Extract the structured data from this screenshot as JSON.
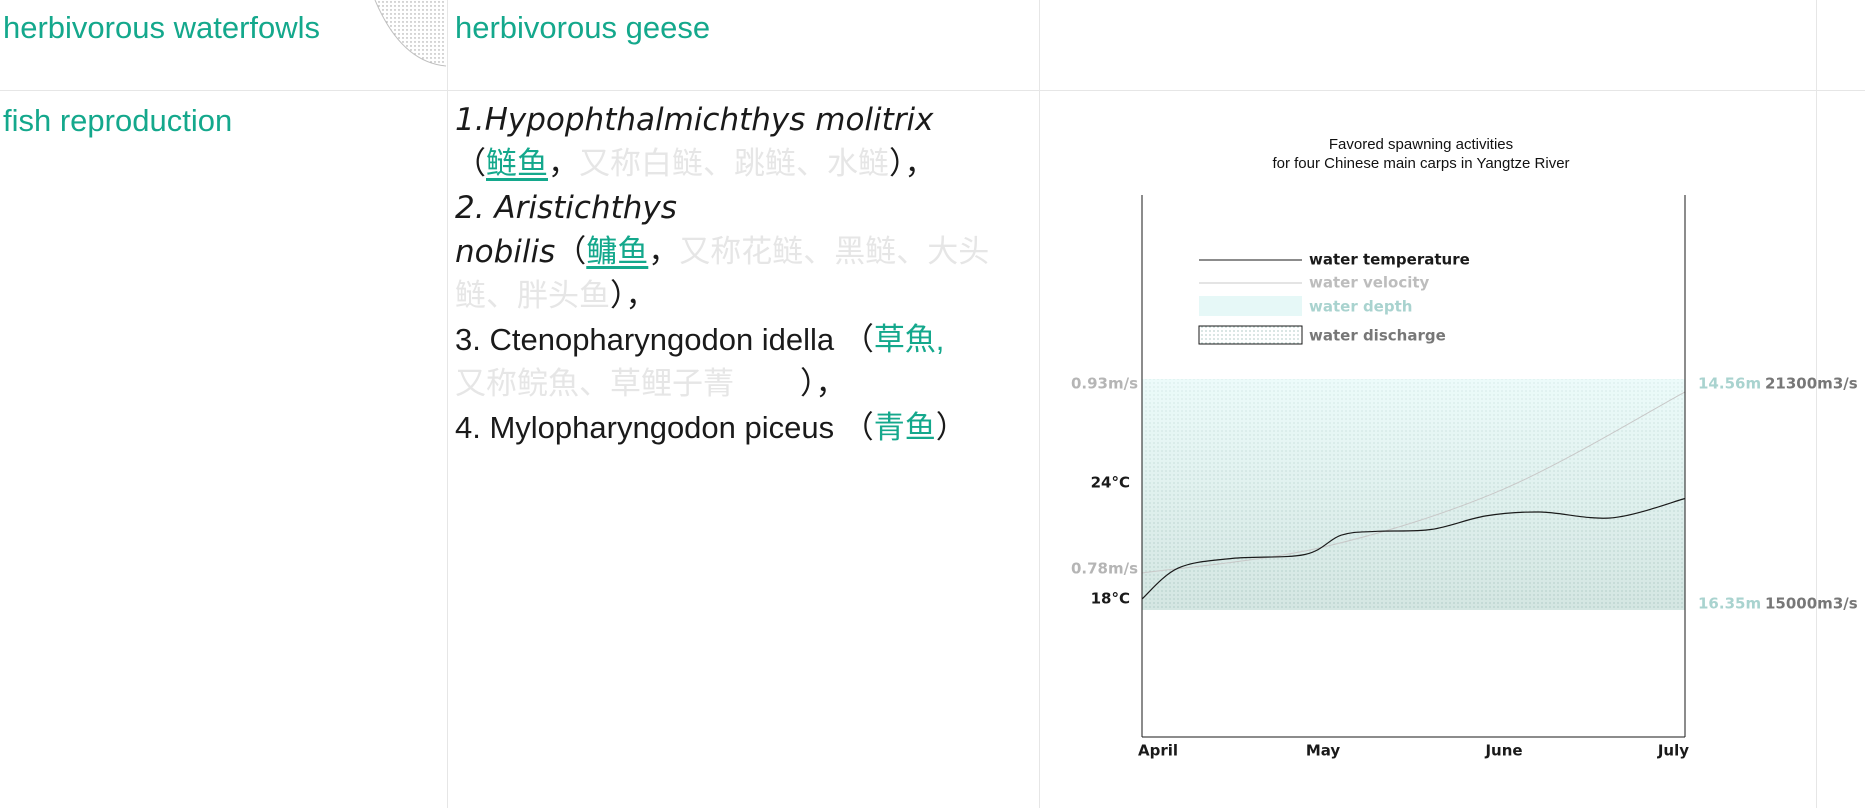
{
  "header": {
    "category_left": "herbivorous waterfowls",
    "category_right": "herbivorous geese"
  },
  "rows": {
    "category": "fish reproduction"
  },
  "species": [
    {
      "l1_latin": "1.Hypophthalmichthys molitrix",
      "l2_open": "（",
      "l2_zh": "鲢鱼",
      "l2_comma": "，",
      "l2_alias": "又称白鲢、跳鲢、水鲢",
      "l2_close": "），"
    },
    {
      "l1_latin": "2. Aristichthys",
      "l2_latin": "nobilis",
      "l2_open": "（",
      "l2_zh": "鳙鱼",
      "l2_comma": "，",
      "l2_alias": "又称花鲢、黑鲢、大头",
      "l3_alias": "鲢、胖头鱼",
      "l3_close": "），"
    },
    {
      "l1_latin": "3. Ctenopharyngodon idella",
      "l1_open": "（",
      "l1_zh": "草魚,",
      "l2_alias": "又称鲩魚、草鲤子菁",
      "l2_close": "），"
    },
    {
      "l1_latin": "4. Mylopharyngodon piceus",
      "l1_open": "（",
      "l1_zh": "青鱼",
      "l1_close": "）"
    }
  ],
  "chart_data": {
    "type": "line",
    "title": "Favored spawning activities",
    "subtitle": "for four Chinese main carps in Yangtze River",
    "x": [
      "April",
      "May",
      "June",
      "July"
    ],
    "legend": {
      "position": "top-left",
      "entries": [
        "water temperature",
        "water velocity",
        "water depth",
        "water discharge"
      ]
    },
    "series": [
      {
        "name": "water temperature",
        "unit": "°C",
        "range": [
          18,
          24
        ],
        "range_labels": [
          "18°C",
          "24°C"
        ],
        "x": [
          0,
          0.2,
          0.5,
          0.9,
          1.1,
          1.3,
          1.6,
          1.9,
          2.2,
          2.6,
          3.0
        ],
        "values": [
          18.0,
          19.6,
          20.1,
          20.3,
          21.3,
          21.5,
          21.6,
          22.3,
          22.5,
          22.2,
          23.2
        ]
      },
      {
        "name": "water velocity",
        "unit": "m/s",
        "range": [
          0.78,
          0.93
        ],
        "range_labels": [
          "0.78m/s",
          "0.93m/s"
        ],
        "x": [
          0,
          1,
          2,
          3
        ],
        "values": [
          0.78,
          0.8,
          0.845,
          0.92
        ]
      },
      {
        "name": "water depth",
        "range_labels": [
          "16.35m",
          "14.56m"
        ]
      },
      {
        "name": "water discharge",
        "range_labels": [
          "15000m3/s",
          "21300m3/s"
        ]
      }
    ],
    "colors": {
      "temperature": "#1a1a1a",
      "velocity": "#c8c8c8",
      "depth": "#e9fbfa",
      "discharge": "#9ec4bc",
      "depth_label": "#a9d3cf",
      "discharge_label": "#777777",
      "velocity_label": "#b5b5b5"
    }
  }
}
